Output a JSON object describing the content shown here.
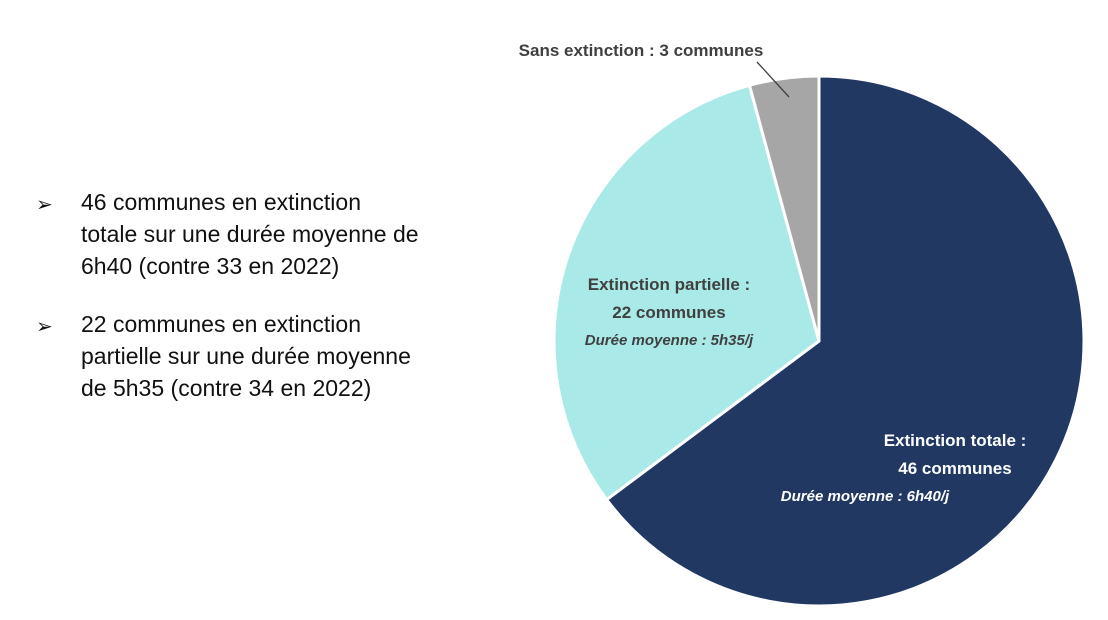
{
  "bullets": [
    {
      "marker": "➢",
      "lines": [
        "46 communes en extinction",
        "totale sur une durée moyenne de",
        "6h40 (contre 33 en 2022)"
      ]
    },
    {
      "marker": "➢",
      "lines": [
        "22 communes en extinction",
        "partielle sur une durée moyenne",
        "de 5h35 (contre 34 en 2022)"
      ]
    }
  ],
  "chart_data": {
    "type": "pie",
    "title": "",
    "slices": [
      {
        "label": "Extinction totale :",
        "value": 46,
        "value_label": "46 communes",
        "duration_label": "Durée moyenne : 6h40/j",
        "color": "#213863"
      },
      {
        "label": "Extinction partielle :",
        "value": 22,
        "value_label": "22 communes",
        "duration_label": "Durée moyenne : 5h35/j",
        "color": "#A9EAE8"
      },
      {
        "label": "Sans extinction : 3 communes",
        "value": 3,
        "value_label": "",
        "duration_label": "",
        "color": "#A6A6A6"
      }
    ],
    "start": "12 o'clock",
    "direction": "clockwise",
    "label_colors": {
      "dark_slice": "#FFFFFF",
      "light_slice": "#404040"
    }
  }
}
